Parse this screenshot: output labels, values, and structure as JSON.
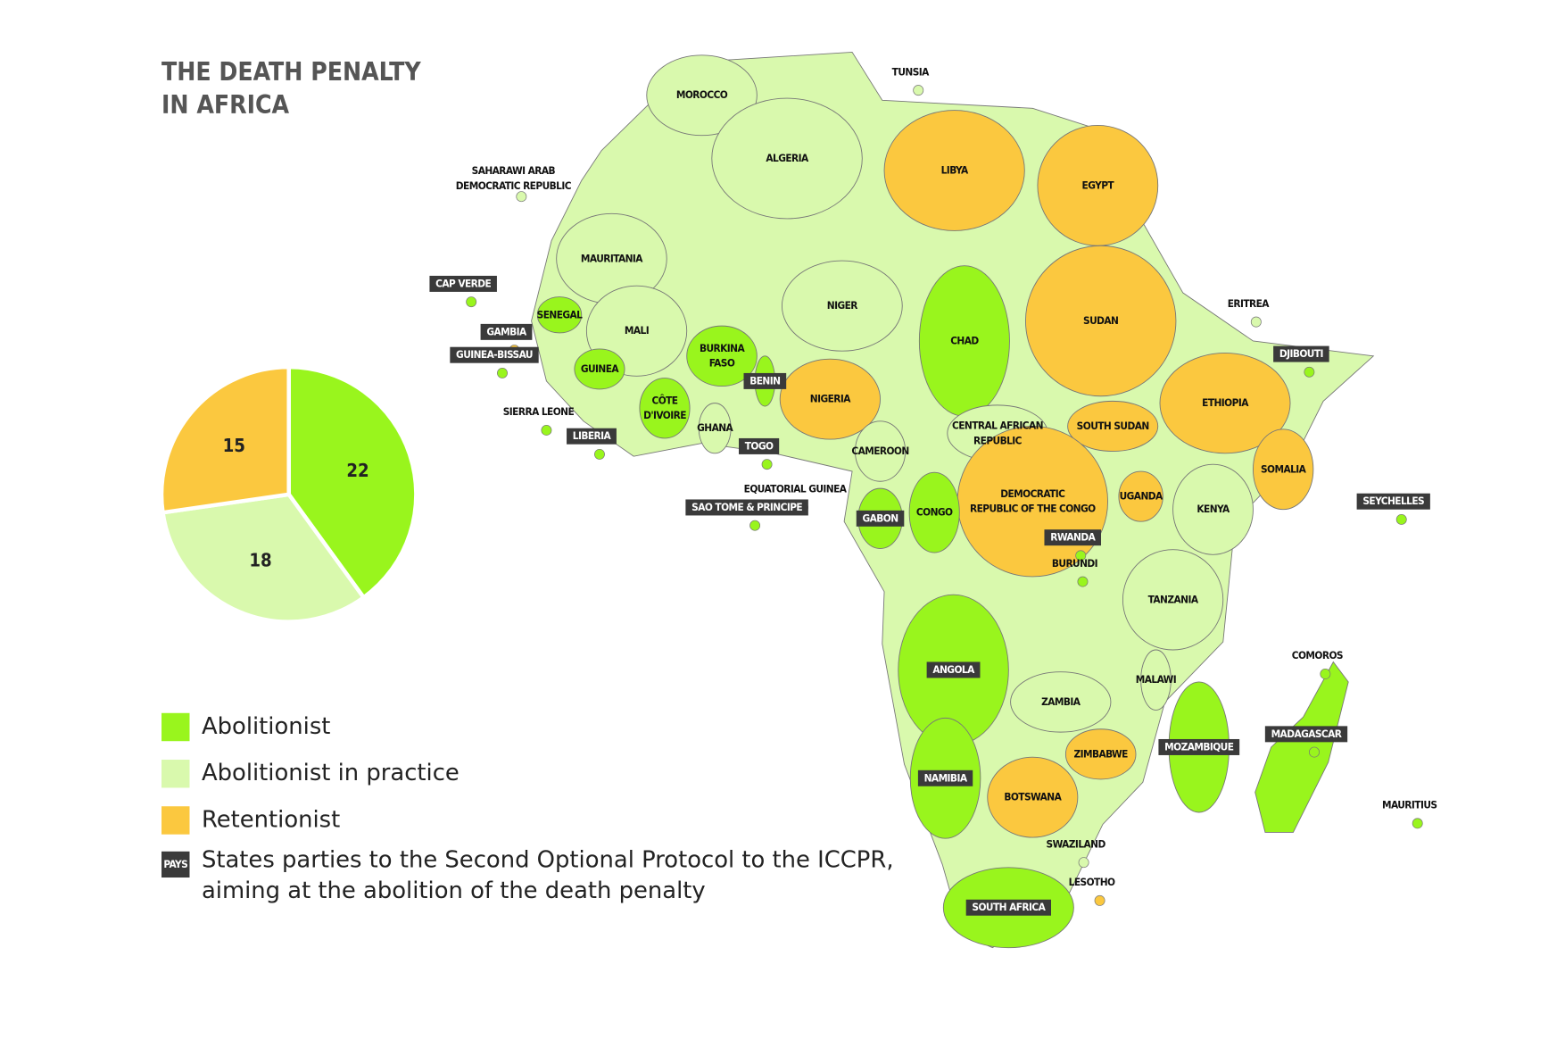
{
  "title": [
    "THE DEATH PENALTY",
    "IN AFRICA"
  ],
  "chart_data": {
    "type": "pie",
    "categories": [
      "Abolitionist",
      "Abolitionist in practice",
      "Retentionist"
    ],
    "values": [
      22,
      18,
      15
    ],
    "colors": [
      "#99f51d",
      "#d9f9ad",
      "#fbc83f"
    ]
  },
  "protocol_legend": {
    "tag": "PAYS",
    "text": [
      "States parties to the Second Optional Protocol to the ICCPR,",
      "aiming at the abolition of the death penalty"
    ]
  },
  "countries": [
    {
      "lines": [
        "TUNSIA"
      ],
      "status": 1
    },
    {
      "lines": [
        "MOROCCO"
      ],
      "status": 1
    },
    {
      "lines": [
        "ALGERIA"
      ],
      "status": 1
    },
    {
      "lines": [
        "LIBYA"
      ],
      "status": 2
    },
    {
      "lines": [
        "EGYPT"
      ],
      "status": 2
    },
    {
      "lines": [
        "SAHARAWI ARAB",
        "DEMOCRATIC REPUBLIC"
      ],
      "status": 1
    },
    {
      "lines": [
        "MAURITANIA"
      ],
      "status": 1
    },
    {
      "lines": [
        "CAP VERDE"
      ],
      "status": 0,
      "protocol": true
    },
    {
      "lines": [
        "NIGER"
      ],
      "status": 1
    },
    {
      "lines": [
        "ERITREA"
      ],
      "status": 1
    },
    {
      "lines": [
        "SENEGAL"
      ],
      "status": 0
    },
    {
      "lines": [
        "GAMBIA"
      ],
      "status": 2,
      "protocol": true
    },
    {
      "lines": [
        "MALI"
      ],
      "status": 1
    },
    {
      "lines": [
        "SUDAN"
      ],
      "status": 2
    },
    {
      "lines": [
        "CHAD"
      ],
      "status": 0
    },
    {
      "lines": [
        "GUINEA-BISSAU"
      ],
      "status": 0,
      "protocol": true
    },
    {
      "lines": [
        "BURKINA",
        "FASO"
      ],
      "status": 0
    },
    {
      "lines": [
        "DJIBOUTI"
      ],
      "status": 0,
      "protocol": true
    },
    {
      "lines": [
        "GUINEA"
      ],
      "status": 0
    },
    {
      "lines": [
        "BENIN"
      ],
      "status": 0,
      "protocol": true
    },
    {
      "lines": [
        "NIGERIA"
      ],
      "status": 2
    },
    {
      "lines": [
        "ETHIOPIA"
      ],
      "status": 2
    },
    {
      "lines": [
        "SIERRA LEONE"
      ],
      "status": 0
    },
    {
      "lines": [
        "CÔTE",
        "D'IVOIRE"
      ],
      "status": 0
    },
    {
      "lines": [
        "GHANA"
      ],
      "status": 1
    },
    {
      "lines": [
        "SOUTH SUDAN"
      ],
      "status": 2
    },
    {
      "lines": [
        "CENTRAL AFRICAN",
        "REPUBLIC"
      ],
      "status": 1
    },
    {
      "lines": [
        "LIBERIA"
      ],
      "status": 0,
      "protocol": true
    },
    {
      "lines": [
        "TOGO"
      ],
      "status": 0,
      "protocol": true
    },
    {
      "lines": [
        "CAMEROON"
      ],
      "status": 1
    },
    {
      "lines": [
        "SOMALIA"
      ],
      "status": 2
    },
    {
      "lines": [
        "EQUATORIAL GUINEA"
      ],
      "status": 2
    },
    {
      "lines": [
        "DEMOCRATIC",
        "REPUBLIC OF THE CONGO"
      ],
      "status": 2
    },
    {
      "lines": [
        "UGANDA"
      ],
      "status": 2
    },
    {
      "lines": [
        "SEYCHELLES"
      ],
      "status": 0,
      "protocol": true
    },
    {
      "lines": [
        "SAO TOME & PRINCIPE"
      ],
      "status": 0,
      "protocol": true
    },
    {
      "lines": [
        "KENYA"
      ],
      "status": 1
    },
    {
      "lines": [
        "GABON"
      ],
      "status": 0,
      "protocol": true
    },
    {
      "lines": [
        "CONGO"
      ],
      "status": 0
    },
    {
      "lines": [
        "RWANDA"
      ],
      "status": 0,
      "protocol": true
    },
    {
      "lines": [
        "BURUNDI"
      ],
      "status": 0
    },
    {
      "lines": [
        "TANZANIA"
      ],
      "status": 1
    },
    {
      "lines": [
        "COMOROS"
      ],
      "status": 0
    },
    {
      "lines": [
        "ANGOLA"
      ],
      "status": 0,
      "protocol": true
    },
    {
      "lines": [
        "MALAWI"
      ],
      "status": 1
    },
    {
      "lines": [
        "ZAMBIA"
      ],
      "status": 1
    },
    {
      "lines": [
        "ZIMBABWE"
      ],
      "status": 2
    },
    {
      "lines": [
        "MOZAMBIQUE"
      ],
      "status": 0,
      "protocol": true
    },
    {
      "lines": [
        "MADAGASCAR"
      ],
      "status": 0,
      "protocol": true
    },
    {
      "lines": [
        "NAMIBIA"
      ],
      "status": 0,
      "protocol": true
    },
    {
      "lines": [
        "BOTSWANA"
      ],
      "status": 2
    },
    {
      "lines": [
        "MAURITIUS"
      ],
      "status": 0
    },
    {
      "lines": [
        "SWAZILAND"
      ],
      "status": 1
    },
    {
      "lines": [
        "LESOTHO"
      ],
      "status": 2
    },
    {
      "lines": [
        "SOUTH AFRICA"
      ],
      "status": 0,
      "protocol": true
    }
  ]
}
